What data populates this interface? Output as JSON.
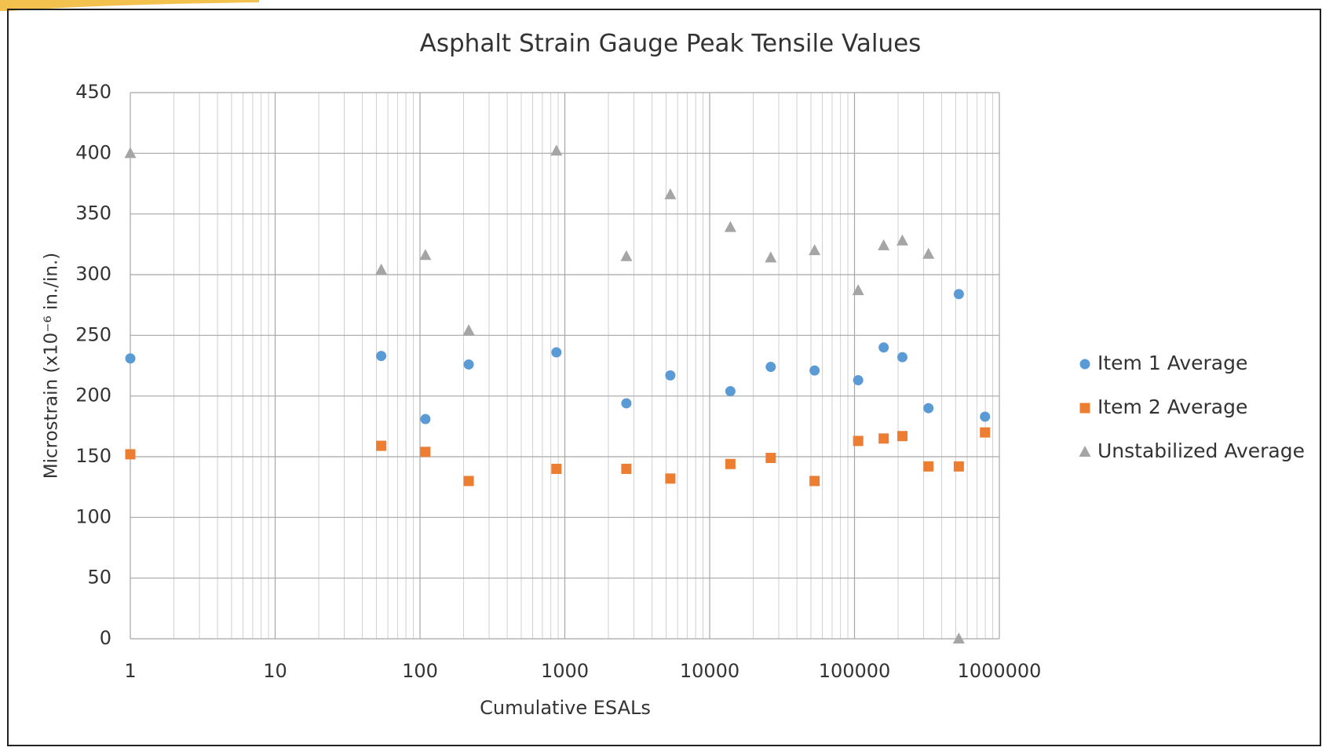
{
  "chart_data": {
    "type": "scatter",
    "title": "Asphalt Strain Gauge Peak Tensile Values",
    "x_label": "Cumulative ESALs",
    "y_label": "Microstrain (x10⁻⁶ in./in.)",
    "x_scale": "log",
    "xlim": [
      1,
      1000000
    ],
    "xticks": [
      1,
      10,
      100,
      1000,
      10000,
      100000,
      1000000
    ],
    "ylim": [
      0,
      450
    ],
    "yticks": [
      0,
      50,
      100,
      150,
      200,
      250,
      300,
      350,
      400,
      450
    ],
    "grid": true,
    "legend": "right",
    "x": [
      1,
      54,
      109,
      217,
      875,
      2660,
      5350,
      13900,
      26400,
      53000,
      106000,
      159000,
      214000,
      324000,
      525000,
      796000
    ],
    "series": [
      {
        "name": "Item 1 Average",
        "color": "#5b9bd5",
        "marker": "circle",
        "values": [
          231,
          233,
          181,
          226,
          236,
          194,
          217,
          204,
          224,
          221,
          213,
          240,
          232,
          190,
          284,
          183
        ]
      },
      {
        "name": "Item 2 Average",
        "color": "#ed7d31",
        "marker": "square",
        "values": [
          152,
          159,
          154,
          130,
          140,
          140,
          132,
          144,
          149,
          130,
          163,
          165,
          167,
          142,
          142,
          170
        ]
      },
      {
        "name": "Unstabilized Average",
        "color": "#a5a5a5",
        "marker": "triangle",
        "values": [
          400,
          304,
          316,
          254,
          402,
          315,
          366,
          339,
          314,
          320,
          287,
          324,
          328,
          317,
          0,
          null
        ]
      }
    ]
  }
}
